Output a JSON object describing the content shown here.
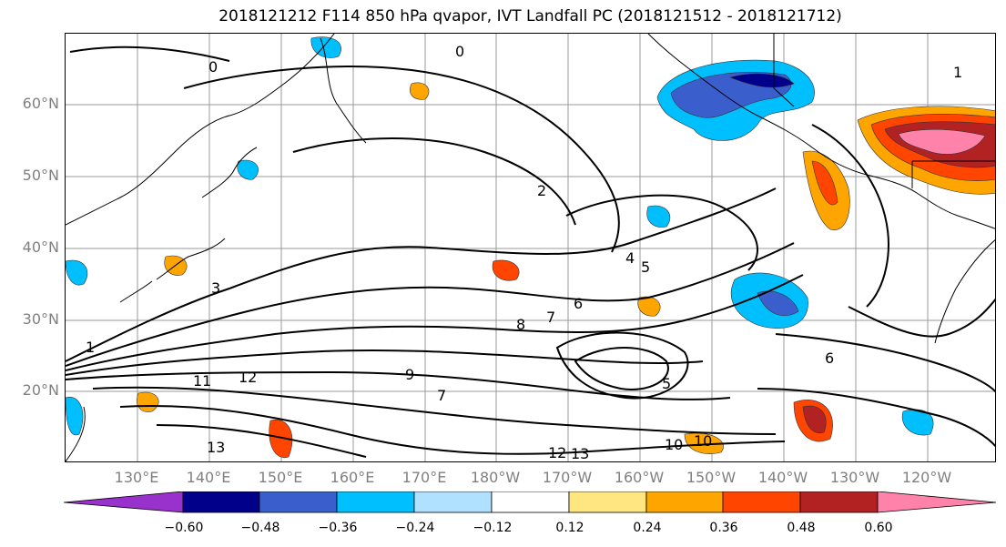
{
  "title": "2018121212 F114 850 hPa qvapor, IVT Landfall PC (2018121512 - 2018121712)",
  "lat_labels": [
    "60°N",
    "50°N",
    "40°N",
    "30°N",
    "20°N"
  ],
  "lon_labels": [
    "130°E",
    "140°E",
    "150°E",
    "160°E",
    "170°E",
    "180°W",
    "170°W",
    "160°W",
    "150°W",
    "140°W",
    "130°W",
    "120°W"
  ],
  "colorbar": {
    "levels": [
      "−0.60",
      "−0.48",
      "−0.36",
      "−0.24",
      "−0.12",
      "0.12",
      "0.24",
      "0.36",
      "0.48",
      "0.60"
    ],
    "colors": [
      "#9932cc",
      "#00008b",
      "#3a5fcd",
      "#00bfff",
      "#b0e2ff",
      "#ffffff",
      "#ffe680",
      "#ffa500",
      "#ff4500",
      "#b22222",
      "#ff82ab"
    ]
  },
  "contour_labels": [
    "0",
    "0",
    "1",
    "2",
    "3",
    "4",
    "5",
    "6",
    "7",
    "7",
    "8",
    "9",
    "10",
    "11",
    "12",
    "13",
    "13",
    "12",
    "10",
    "1",
    "5",
    "6"
  ],
  "colors": {
    "fill_blue": "#00bfff",
    "fill_darkblue": "#3a5fcd",
    "fill_navy": "#00008b",
    "fill_lightblue": "#b0e2ff",
    "fill_yellow": "#ffe680",
    "fill_orange": "#ffa500",
    "fill_red": "#ff4500",
    "fill_darkred": "#b22222",
    "fill_pink": "#ff82ab"
  }
}
